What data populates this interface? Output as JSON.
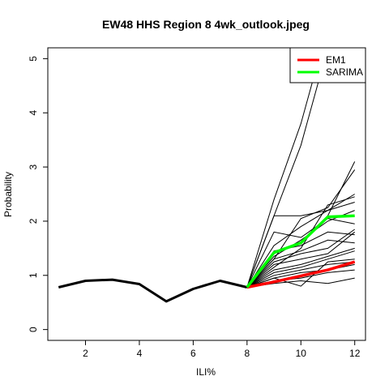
{
  "chart_data": {
    "type": "line",
    "title": "EW48 HHS Region 8 4wk_outlook.jpeg",
    "xlabel": "ILI%",
    "ylabel": "Probability",
    "xlim": [
      0.6,
      12.4
    ],
    "ylim": [
      -0.2,
      5.2
    ],
    "x_ticks": [
      2,
      4,
      6,
      8,
      10,
      12
    ],
    "y_ticks": [
      0,
      1,
      2,
      3,
      4,
      5
    ],
    "grid": false,
    "legend_position": "top-right",
    "legend": [
      {
        "label": "EM1",
        "color": "#ff0000"
      },
      {
        "label": "SARIMA",
        "color": "#00ff00"
      }
    ],
    "observed": {
      "color": "#000000",
      "x": [
        1,
        2,
        3,
        4,
        5,
        6,
        7,
        8
      ],
      "y": [
        0.78,
        0.9,
        0.92,
        0.84,
        0.52,
        0.75,
        0.9,
        0.78
      ]
    },
    "ensemble": {
      "color": "#000000",
      "x": [
        8,
        9,
        10,
        11,
        12
      ],
      "members": [
        [
          0.78,
          2.1,
          2.1,
          2.2,
          2.5
        ],
        [
          0.78,
          1.8,
          1.7,
          2.05,
          1.95
        ],
        [
          0.78,
          1.55,
          1.9,
          2.2,
          2.35
        ],
        [
          0.78,
          1.35,
          1.65,
          2.0,
          2.2
        ],
        [
          0.78,
          1.45,
          1.55,
          1.8,
          1.75
        ],
        [
          0.78,
          1.3,
          1.45,
          1.65,
          1.6
        ],
        [
          0.78,
          1.25,
          1.4,
          1.5,
          1.85
        ],
        [
          0.78,
          1.2,
          1.3,
          1.4,
          1.8
        ],
        [
          0.78,
          1.1,
          1.2,
          1.35,
          1.5
        ],
        [
          0.78,
          1.05,
          1.15,
          1.3,
          1.45
        ],
        [
          0.78,
          1.0,
          1.1,
          1.2,
          1.25
        ],
        [
          0.78,
          0.95,
          1.05,
          1.1,
          1.2
        ],
        [
          0.78,
          0.9,
          0.95,
          1.05,
          1.1
        ],
        [
          0.78,
          0.85,
          0.9,
          0.85,
          0.95
        ],
        [
          0.78,
          0.95,
          0.8,
          1.25,
          1.3
        ],
        [
          0.78,
          1.15,
          1.5,
          2.3,
          2.45
        ],
        [
          0.78,
          1.4,
          1.6,
          2.1,
          3.1
        ],
        [
          0.78,
          1.3,
          2.05,
          2.25,
          2.95
        ],
        [
          0.78,
          2.1,
          3.4,
          5.2,
          5.6
        ],
        [
          0.78,
          2.4,
          3.8,
          5.6,
          6.2
        ]
      ]
    },
    "series": [
      {
        "name": "EM1",
        "color": "#ff0000",
        "x": [
          8,
          9,
          10,
          11,
          12
        ],
        "values": [
          0.78,
          0.88,
          0.99,
          1.1,
          1.25
        ]
      },
      {
        "name": "SARIMA",
        "color": "#00ff00",
        "x": [
          8,
          9,
          10,
          11,
          12
        ],
        "values": [
          0.78,
          1.42,
          1.6,
          2.08,
          2.1
        ]
      }
    ]
  }
}
